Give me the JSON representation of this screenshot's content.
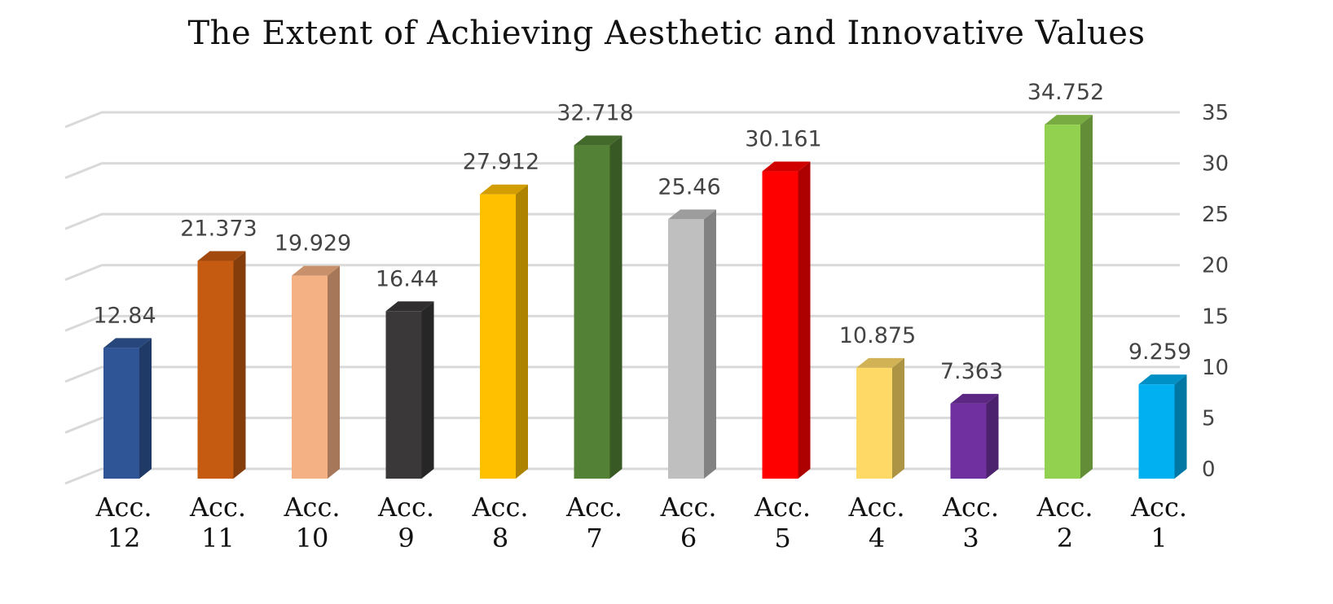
{
  "chart_data": {
    "type": "bar",
    "title": "The Extent of Achieving Aesthetic and Innovative Values",
    "xlabel": "",
    "ylabel": "",
    "ylim": [
      0,
      35
    ],
    "yticks": [
      "0",
      "5",
      "10",
      "15",
      "20",
      "25",
      "30",
      "35"
    ],
    "axis_side": "right",
    "style": "3d-column",
    "grid": true,
    "legend": "none",
    "categories": [
      [
        "Acc.",
        "12"
      ],
      [
        "Acc.",
        "11"
      ],
      [
        "Acc.",
        "10"
      ],
      [
        "Acc.",
        "9"
      ],
      [
        "Acc.",
        "8"
      ],
      [
        "Acc.",
        "7"
      ],
      [
        "Acc.",
        "6"
      ],
      [
        "Acc.",
        "5"
      ],
      [
        "Acc.",
        "4"
      ],
      [
        "Acc.",
        "3"
      ],
      [
        "Acc.",
        "2"
      ],
      [
        "Acc.",
        "1"
      ]
    ],
    "values": [
      12.84,
      21.373,
      19.929,
      16.44,
      27.912,
      32.718,
      25.46,
      30.161,
      10.875,
      7.363,
      34.752,
      9.259
    ],
    "value_labels": [
      "12.84",
      "21.373",
      "19.929",
      "16.44",
      "27.912",
      "32.718",
      "25.46",
      "30.161",
      "10.875",
      "7.363",
      "34.752",
      "9.259"
    ],
    "colors": [
      "#2f5597",
      "#c55a11",
      "#f4b183",
      "#3a3838",
      "#ffc000",
      "#538135",
      "#bfbfbf",
      "#ff0000",
      "#ffd966",
      "#7030a0",
      "#92d050",
      "#00b0f0"
    ]
  }
}
